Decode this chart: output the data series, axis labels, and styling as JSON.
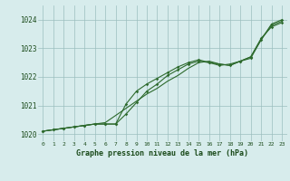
{
  "xlabel": "Graphe pression niveau de la mer (hPa)",
  "x_values": [
    0,
    1,
    2,
    3,
    4,
    5,
    6,
    7,
    8,
    9,
    10,
    11,
    12,
    13,
    14,
    15,
    16,
    17,
    18,
    19,
    20,
    21,
    22,
    23
  ],
  "line1": [
    1020.1,
    1020.15,
    1020.2,
    1020.25,
    1020.3,
    1020.35,
    1020.35,
    1020.35,
    1020.7,
    1021.1,
    1021.5,
    1021.75,
    1022.05,
    1022.25,
    1022.45,
    1022.55,
    1022.5,
    1022.45,
    1022.4,
    1022.55,
    1022.7,
    1023.35,
    1023.75,
    1023.9
  ],
  "line2": [
    1020.1,
    1020.15,
    1020.2,
    1020.25,
    1020.3,
    1020.35,
    1020.35,
    1020.35,
    1021.05,
    1021.5,
    1021.75,
    1021.95,
    1022.15,
    1022.35,
    1022.5,
    1022.6,
    1022.5,
    1022.4,
    1022.45,
    1022.55,
    1022.65,
    1023.3,
    1023.85,
    1024.0
  ],
  "line3": [
    1020.1,
    1020.15,
    1020.2,
    1020.25,
    1020.3,
    1020.35,
    1020.4,
    1020.65,
    1020.9,
    1021.15,
    1021.4,
    1021.6,
    1021.85,
    1022.05,
    1022.3,
    1022.5,
    1022.55,
    1022.45,
    1022.4,
    1022.55,
    1022.7,
    1023.3,
    1023.8,
    1023.95
  ],
  "bg_color": "#d7ecec",
  "grid_color": "#9bbfbf",
  "line_color": "#2d6a2d",
  "ylim_min": 1019.75,
  "ylim_max": 1024.5,
  "yticks": [
    1020,
    1021,
    1022,
    1023,
    1024
  ],
  "xlim_min": -0.5,
  "xlim_max": 23.5
}
